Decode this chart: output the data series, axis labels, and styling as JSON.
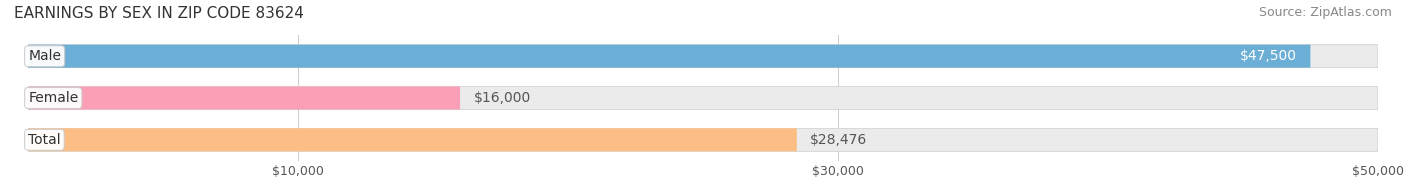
{
  "title": "EARNINGS BY SEX IN ZIP CODE 83624",
  "source": "Source: ZipAtlas.com",
  "categories": [
    "Male",
    "Female",
    "Total"
  ],
  "values": [
    47500,
    16000,
    28476
  ],
  "bar_colors": [
    "#6baed6",
    "#fa9fb5",
    "#fdbe85"
  ],
  "bar_bg_color": "#f0f0f0",
  "bar_label_color": [
    "#ffffff",
    "#555555",
    "#555555"
  ],
  "xlim": [
    0,
    50000
  ],
  "xticks": [
    10000,
    30000,
    50000
  ],
  "xtick_labels": [
    "$10,000",
    "$30,000",
    "$50,000"
  ],
  "value_labels": [
    "$47,500",
    "$16,000",
    "$28,476"
  ],
  "title_fontsize": 11,
  "source_fontsize": 9,
  "label_fontsize": 10,
  "bar_height": 0.55,
  "background_color": "#ffffff",
  "fig_width": 14.06,
  "fig_height": 1.96
}
